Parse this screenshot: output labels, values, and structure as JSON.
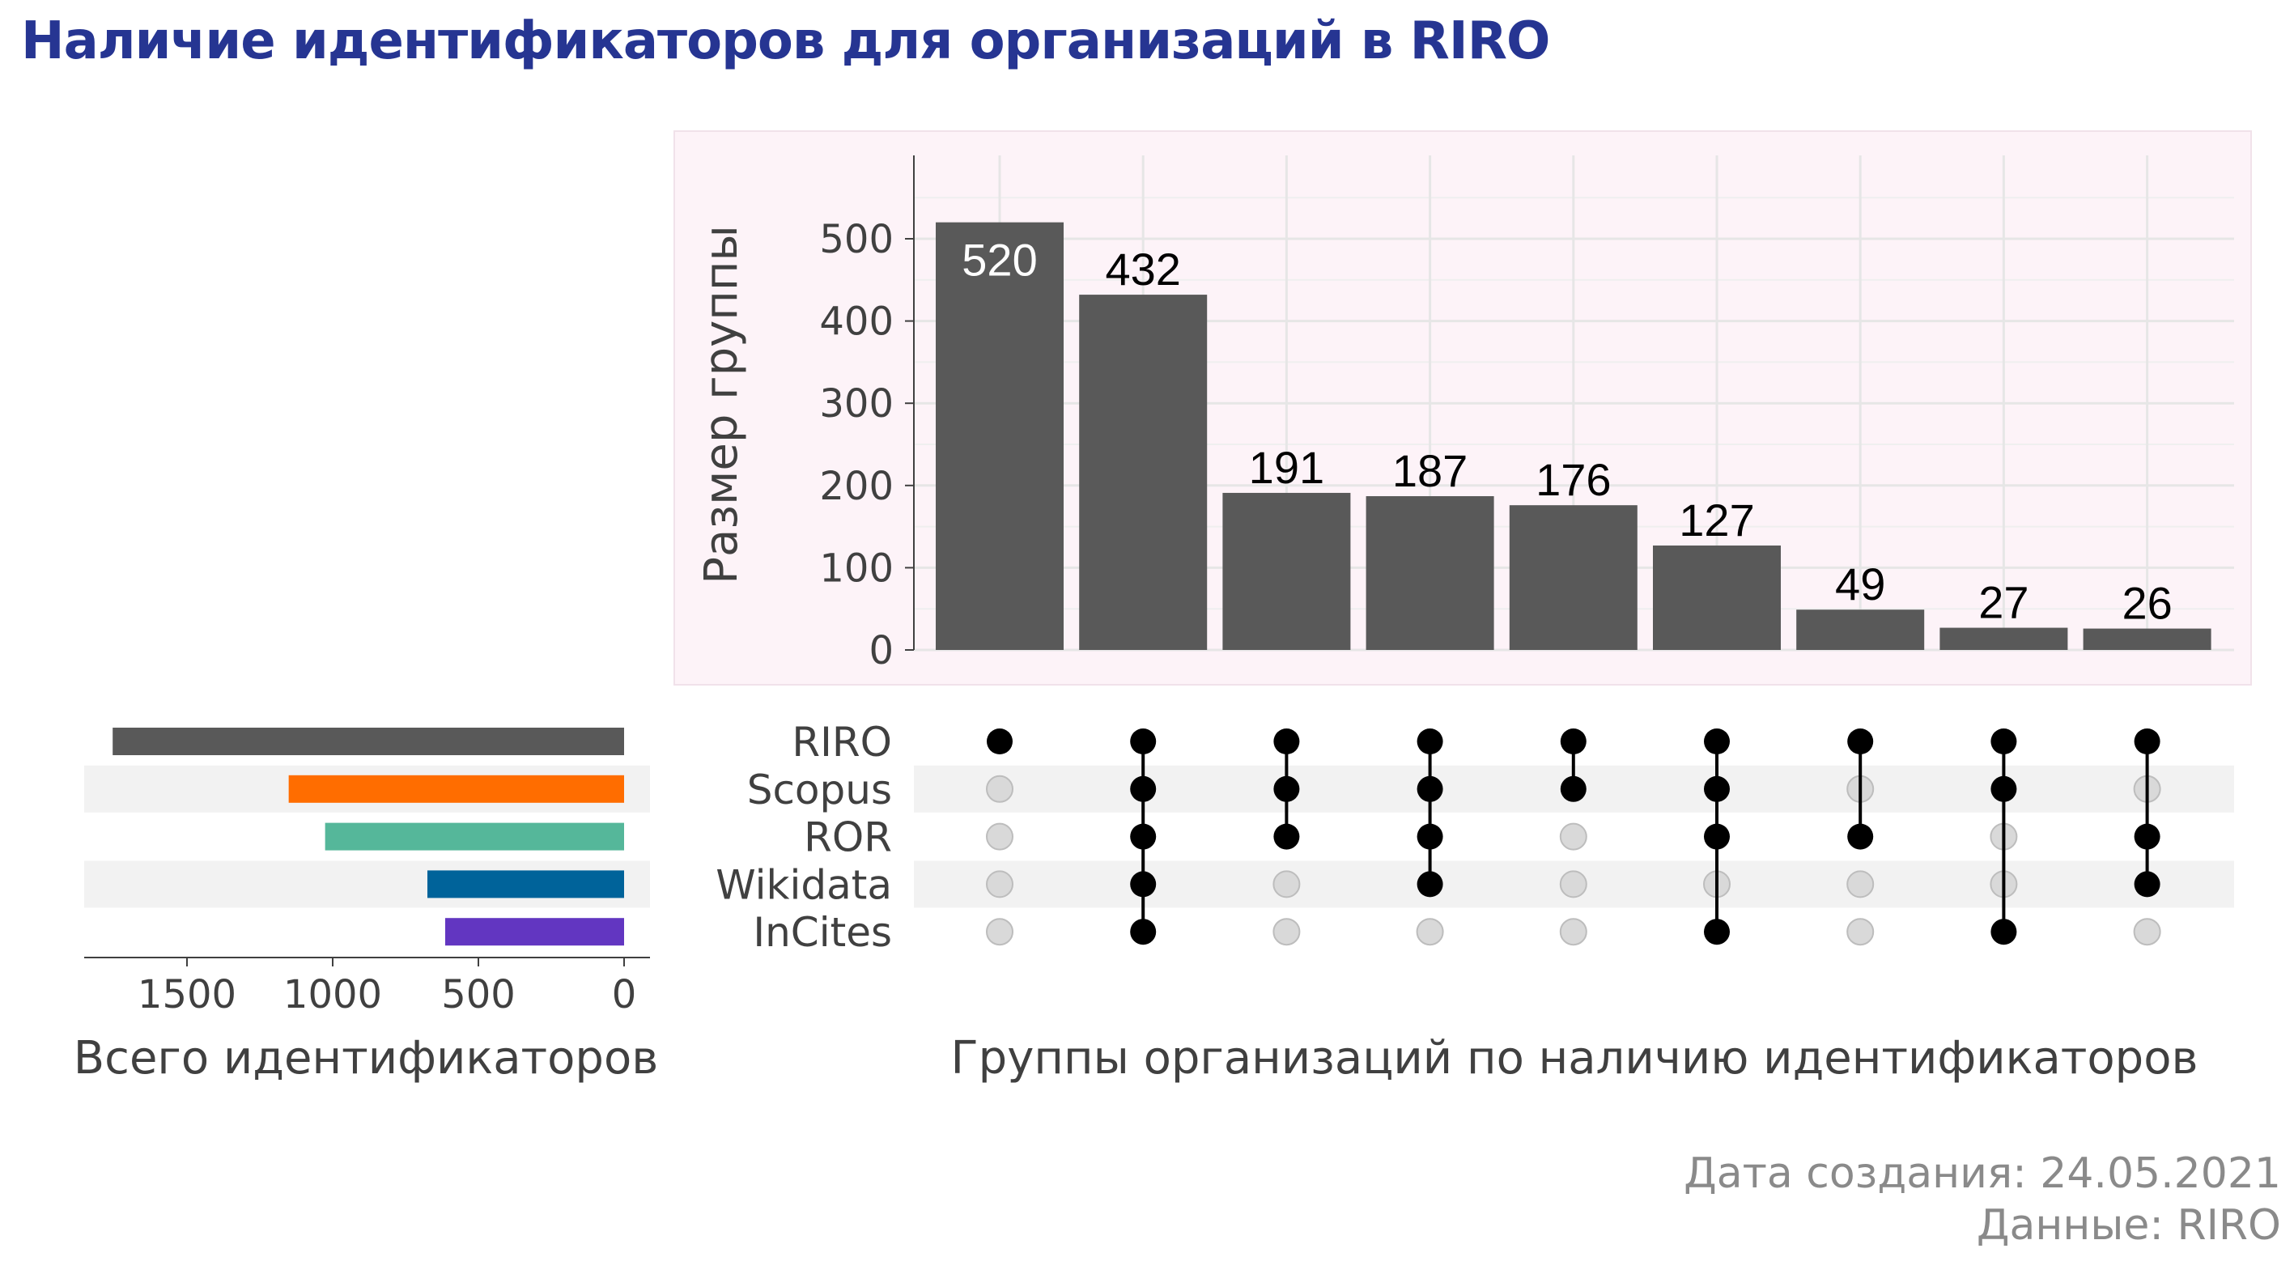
{
  "title": "Наличие идентификаторов для организаций в RIRO",
  "caption": {
    "date": "Дата создания: 24.05.2021",
    "source": "Данные: RIRO"
  },
  "chart_data": [
    {
      "type": "bar",
      "ylabel": "Размер группы",
      "ylim": [
        0,
        600
      ],
      "yticks": [
        0,
        100,
        200,
        300,
        400,
        500
      ],
      "values": [
        520,
        432,
        191,
        187,
        176,
        127,
        49,
        27,
        26
      ],
      "xlabel": "Группы организаций по наличию идентификаторов",
      "grid": true
    },
    {
      "type": "matrix",
      "sets": [
        "RIRO",
        "Scopus",
        "ROR",
        "Wikidata",
        "InCites"
      ],
      "groups": [
        [
          "RIRO"
        ],
        [
          "RIRO",
          "Scopus",
          "ROR",
          "Wikidata",
          "InCites"
        ],
        [
          "RIRO",
          "Scopus",
          "ROR"
        ],
        [
          "RIRO",
          "Scopus",
          "ROR",
          "Wikidata"
        ],
        [
          "RIRO",
          "Scopus"
        ],
        [
          "RIRO",
          "Scopus",
          "ROR",
          "InCites"
        ],
        [
          "RIRO",
          "ROR"
        ],
        [
          "RIRO",
          "Scopus",
          "InCites"
        ],
        [
          "RIRO",
          "ROR",
          "Wikidata"
        ]
      ]
    },
    {
      "type": "bar",
      "orientation": "horizontal",
      "xlabel": "Всего идентификаторов",
      "categories": [
        "RIRO",
        "Scopus",
        "ROR",
        "Wikidata",
        "InCites"
      ],
      "values": [
        1755,
        1151,
        1026,
        675,
        614
      ],
      "xticks": [
        1500,
        1000,
        500,
        0
      ],
      "colors": [
        "#595959",
        "#ff6d00",
        "#55b79a",
        "#00639a",
        "#6236c1"
      ]
    }
  ]
}
